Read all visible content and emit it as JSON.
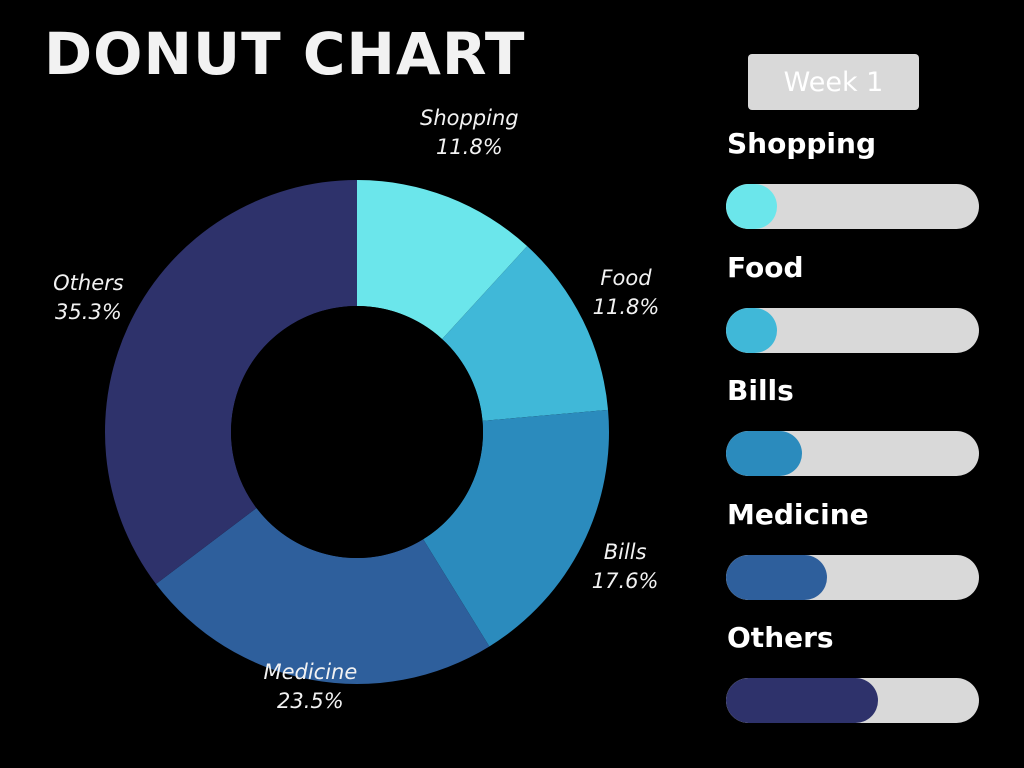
{
  "title": "DONUT CHART",
  "badge": {
    "label": "Week 1"
  },
  "colors": {
    "background": "#000000",
    "track": "#d9d9d9",
    "title": "#f2f2f2"
  },
  "chart_data": {
    "type": "pie",
    "subtype": "donut",
    "title": "DONUT CHART",
    "categories": [
      "Shopping",
      "Food",
      "Bills",
      "Medicine",
      "Others"
    ],
    "values": [
      11.8,
      11.8,
      17.6,
      23.5,
      35.3
    ],
    "value_labels": [
      "11.8%",
      "11.8%",
      "17.6%",
      "23.5%",
      "35.3%"
    ],
    "colors": [
      "#6be6eb",
      "#40b8d8",
      "#2b8bbd",
      "#2e5f9c",
      "#2e326b"
    ],
    "unit": "%",
    "start_angle_deg": 0,
    "direction": "clockwise",
    "legend": {
      "position": "right",
      "style": "progress-bars",
      "fill_fractions": [
        0.2,
        0.2,
        0.3,
        0.4,
        0.6
      ]
    }
  }
}
